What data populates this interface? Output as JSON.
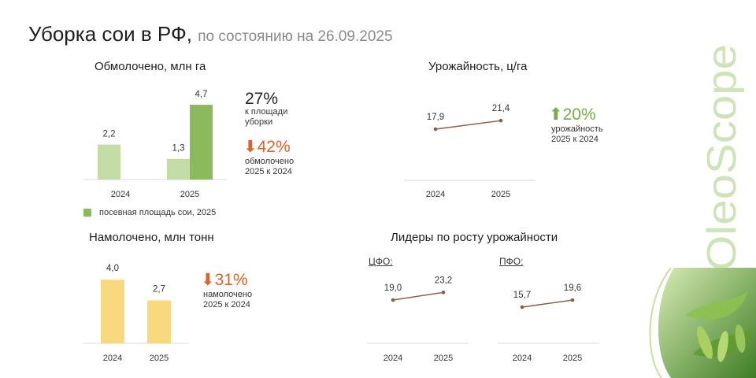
{
  "header": {
    "title": "Уборка сои в РФ,",
    "subtitle": "по состоянию на 26.09.2025"
  },
  "brand": {
    "logo_text": "OleoScope",
    "color": "#cfe3b8"
  },
  "colors": {
    "green_dark": "#8aba5c",
    "green_light": "#c4dda6",
    "yellow": "#f8d97e",
    "line": "#8c5a4a",
    "axis": "#d9d9d9",
    "down": "#e0612a",
    "up": "#77ad47"
  },
  "threshed": {
    "title": "Обмолочено, млн га",
    "big_pct": "27%",
    "big_note": "к площади\nуборки",
    "change_pct": "42%",
    "change_dir": "down",
    "change_note": "обмолочено\n2025 к 2024",
    "legend": "посевная площадь сои, 2025",
    "chart_data": {
      "type": "bar",
      "categories": [
        "2024",
        "2025"
      ],
      "series": [
        {
          "values": [
            2.2,
            1.3
          ],
          "labels": [
            "2,2",
            "1,3"
          ]
        },
        {
          "name": "посевная площадь сои, 2025",
          "values": [
            null,
            4.7
          ],
          "labels": [
            "",
            "4,7"
          ]
        }
      ]
    }
  },
  "yield": {
    "title": "Урожайность, ц/га",
    "change_pct": "20%",
    "change_dir": "up",
    "change_note": "урожайность\n2025 к 2024",
    "chart_data": {
      "type": "line",
      "categories": [
        "2024",
        "2025"
      ],
      "values": [
        17.9,
        21.4
      ],
      "labels": [
        "17,9",
        "21,4"
      ]
    }
  },
  "harvested": {
    "title": "Намолочено, млн тонн",
    "change_pct": "31%",
    "change_dir": "down",
    "change_note": "намолочено\n2025 к 2024",
    "chart_data": {
      "type": "bar",
      "categories": [
        "2024",
        "2025"
      ],
      "values": [
        4.0,
        2.7
      ],
      "labels": [
        "4,0",
        "2,7"
      ]
    }
  },
  "leaders": {
    "title": "Лидеры по росту урожайности",
    "charts": [
      {
        "region": "ЦФО:",
        "chart_data": {
          "type": "line",
          "categories": [
            "2024",
            "2025"
          ],
          "values": [
            19.0,
            23.2
          ],
          "labels": [
            "19,0",
            "23,2"
          ]
        }
      },
      {
        "region": "ПФО:",
        "chart_data": {
          "type": "line",
          "categories": [
            "2024",
            "2025"
          ],
          "values": [
            15.7,
            19.6
          ],
          "labels": [
            "15,7",
            "19,6"
          ]
        }
      }
    ]
  }
}
